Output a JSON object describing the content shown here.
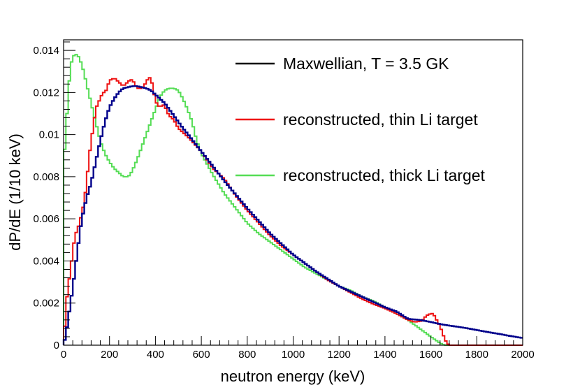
{
  "chart_data": {
    "type": "line",
    "title": "",
    "xlabel": "neutron energy (keV)",
    "ylabel": "dP/dE (1/10 keV)",
    "xlim": [
      0,
      2000
    ],
    "ylim": [
      0,
      0.0145
    ],
    "x_ticks": [
      0,
      200,
      400,
      600,
      800,
      1000,
      1200,
      1400,
      1600,
      1800,
      2000
    ],
    "x_tick_labels": [
      "0",
      "200",
      "400",
      "600",
      "800",
      "1000",
      "1200",
      "1400",
      "1600",
      "1800",
      "2000"
    ],
    "y_ticks": [
      0,
      0.002,
      0.004,
      0.006,
      0.008,
      0.01,
      0.012,
      0.014
    ],
    "y_tick_labels": [
      "0",
      "0.002",
      "0.004",
      "0.006",
      "0.008",
      "0.01",
      "0.012",
      "0.014"
    ],
    "grid": false,
    "legend_position": "top-right",
    "histogram_bin_width": 10,
    "series": [
      {
        "name": "Maxwellian, T = 3.5 GK",
        "color": "#00008b",
        "legend_color": "#000000",
        "points": [
          [
            0,
            0.0
          ],
          [
            10,
            0.0005
          ],
          [
            20,
            0.0012
          ],
          [
            30,
            0.002
          ],
          [
            40,
            0.0027
          ],
          [
            50,
            0.0036
          ],
          [
            60,
            0.0044
          ],
          [
            70,
            0.0053
          ],
          [
            80,
            0.006
          ],
          [
            90,
            0.0065
          ],
          [
            100,
            0.007
          ],
          [
            120,
            0.0077
          ],
          [
            140,
            0.0087
          ],
          [
            160,
            0.0097
          ],
          [
            180,
            0.0106
          ],
          [
            200,
            0.0113
          ],
          [
            220,
            0.0117
          ],
          [
            240,
            0.012
          ],
          [
            260,
            0.0122
          ],
          [
            280,
            0.01225
          ],
          [
            300,
            0.0123
          ],
          [
            320,
            0.0123
          ],
          [
            340,
            0.01225
          ],
          [
            360,
            0.0122
          ],
          [
            380,
            0.0121
          ],
          [
            400,
            0.0119
          ],
          [
            420,
            0.0117
          ],
          [
            440,
            0.0115
          ],
          [
            460,
            0.0112
          ],
          [
            480,
            0.0109
          ],
          [
            500,
            0.0106
          ],
          [
            520,
            0.0103
          ],
          [
            550,
            0.0099
          ],
          [
            600,
            0.0092
          ],
          [
            650,
            0.0085
          ],
          [
            700,
            0.0078
          ],
          [
            750,
            0.00715
          ],
          [
            800,
            0.0065
          ],
          [
            850,
            0.0059
          ],
          [
            900,
            0.0053
          ],
          [
            950,
            0.0048
          ],
          [
            1000,
            0.0043
          ],
          [
            1050,
            0.0039
          ],
          [
            1100,
            0.0035
          ],
          [
            1150,
            0.00315
          ],
          [
            1200,
            0.0028
          ],
          [
            1250,
            0.00255
          ],
          [
            1300,
            0.0023
          ],
          [
            1350,
            0.00205
          ],
          [
            1400,
            0.0018
          ],
          [
            1450,
            0.0016
          ],
          [
            1500,
            0.00125
          ],
          [
            1550,
            0.0012
          ],
          [
            1600,
            0.0011
          ],
          [
            1650,
            0.00098
          ],
          [
            1700,
            0.0009
          ],
          [
            1750,
            0.00082
          ],
          [
            1800,
            0.00072
          ],
          [
            1850,
            0.00062
          ],
          [
            1900,
            0.00053
          ],
          [
            1950,
            0.00043
          ],
          [
            2000,
            0.00034
          ]
        ]
      },
      {
        "name": "reconstructed, thin Li target",
        "color": "#ee1111",
        "legend_color": "#ee1111",
        "points": [
          [
            0,
            0.0
          ],
          [
            10,
            0.0018
          ],
          [
            20,
            0.0028
          ],
          [
            30,
            0.0035
          ],
          [
            40,
            0.0045
          ],
          [
            50,
            0.0052
          ],
          [
            60,
            0.0055
          ],
          [
            70,
            0.0058
          ],
          [
            80,
            0.0063
          ],
          [
            90,
            0.0068
          ],
          [
            100,
            0.0077
          ],
          [
            110,
            0.0088
          ],
          [
            120,
            0.0097
          ],
          [
            130,
            0.0104
          ],
          [
            140,
            0.0112
          ],
          [
            150,
            0.0115
          ],
          [
            160,
            0.0117
          ],
          [
            170,
            0.012
          ],
          [
            180,
            0.012
          ],
          [
            190,
            0.0122
          ],
          [
            200,
            0.0126
          ],
          [
            210,
            0.0126
          ],
          [
            220,
            0.0127
          ],
          [
            230,
            0.0126
          ],
          [
            240,
            0.0125
          ],
          [
            250,
            0.0124
          ],
          [
            260,
            0.0123
          ],
          [
            270,
            0.0124
          ],
          [
            280,
            0.0125
          ],
          [
            290,
            0.0126
          ],
          [
            300,
            0.0126
          ],
          [
            310,
            0.0124
          ],
          [
            320,
            0.0122
          ],
          [
            330,
            0.0122
          ],
          [
            340,
            0.0122
          ],
          [
            350,
            0.0123
          ],
          [
            360,
            0.0125
          ],
          [
            370,
            0.0127
          ],
          [
            380,
            0.0127
          ],
          [
            390,
            0.0122
          ],
          [
            400,
            0.0116
          ],
          [
            410,
            0.0114
          ],
          [
            420,
            0.0113
          ],
          [
            430,
            0.0114
          ],
          [
            440,
            0.0114
          ],
          [
            450,
            0.0111
          ],
          [
            460,
            0.0109
          ],
          [
            470,
            0.0108
          ],
          [
            480,
            0.0107
          ],
          [
            490,
            0.0105
          ],
          [
            500,
            0.0103
          ],
          [
            520,
            0.0101
          ],
          [
            550,
            0.0098
          ],
          [
            600,
            0.0092
          ],
          [
            650,
            0.0084
          ],
          [
            700,
            0.0079
          ],
          [
            750,
            0.0071
          ],
          [
            800,
            0.0064
          ],
          [
            850,
            0.0058
          ],
          [
            900,
            0.0052
          ],
          [
            950,
            0.0047
          ],
          [
            1000,
            0.0043
          ],
          [
            1050,
            0.0039
          ],
          [
            1100,
            0.0035
          ],
          [
            1150,
            0.0031
          ],
          [
            1200,
            0.0028
          ],
          [
            1250,
            0.0025
          ],
          [
            1300,
            0.0022
          ],
          [
            1350,
            0.00195
          ],
          [
            1400,
            0.00175
          ],
          [
            1450,
            0.0015
          ],
          [
            1500,
            0.0012
          ],
          [
            1530,
            0.0011
          ],
          [
            1560,
            0.00115
          ],
          [
            1580,
            0.0014
          ],
          [
            1600,
            0.0015
          ],
          [
            1610,
            0.0015
          ],
          [
            1620,
            0.0013
          ],
          [
            1640,
            0.0009
          ],
          [
            1650,
            0.0006
          ],
          [
            1660,
            0.0003
          ],
          [
            1670,
            0.0001
          ],
          [
            1680,
            0.0
          ],
          [
            2000,
            0.0
          ]
        ]
      },
      {
        "name": "reconstructed, thick Li target",
        "color": "#55dd55",
        "legend_color": "#55dd55",
        "points": [
          [
            0,
            0.0085
          ],
          [
            10,
            0.0101
          ],
          [
            20,
            0.0119
          ],
          [
            30,
            0.0132
          ],
          [
            40,
            0.0137
          ],
          [
            50,
            0.0138
          ],
          [
            60,
            0.0138
          ],
          [
            70,
            0.0136
          ],
          [
            80,
            0.0133
          ],
          [
            90,
            0.0129
          ],
          [
            100,
            0.0124
          ],
          [
            120,
            0.0115
          ],
          [
            140,
            0.0106
          ],
          [
            160,
            0.0097
          ],
          [
            180,
            0.0091
          ],
          [
            200,
            0.0087
          ],
          [
            220,
            0.0084
          ],
          [
            240,
            0.0082
          ],
          [
            260,
            0.008
          ],
          [
            270,
            0.008
          ],
          [
            280,
            0.008
          ],
          [
            290,
            0.0081
          ],
          [
            300,
            0.0083
          ],
          [
            320,
            0.0088
          ],
          [
            340,
            0.0094
          ],
          [
            360,
            0.01
          ],
          [
            380,
            0.0106
          ],
          [
            400,
            0.0112
          ],
          [
            420,
            0.0118
          ],
          [
            440,
            0.0121
          ],
          [
            460,
            0.0122
          ],
          [
            480,
            0.0122
          ],
          [
            500,
            0.0121
          ],
          [
            520,
            0.0117
          ],
          [
            540,
            0.0112
          ],
          [
            560,
            0.0106
          ],
          [
            580,
            0.0097
          ],
          [
            600,
            0.0091
          ],
          [
            650,
            0.0081
          ],
          [
            700,
            0.0072
          ],
          [
            750,
            0.0065
          ],
          [
            800,
            0.0058
          ],
          [
            850,
            0.0053
          ],
          [
            900,
            0.0049
          ],
          [
            950,
            0.0045
          ],
          [
            1000,
            0.0041
          ],
          [
            1050,
            0.0037
          ],
          [
            1100,
            0.0034
          ],
          [
            1150,
            0.0031
          ],
          [
            1200,
            0.0028
          ],
          [
            1250,
            0.0026
          ],
          [
            1300,
            0.0023
          ],
          [
            1350,
            0.0021
          ],
          [
            1400,
            0.0018
          ],
          [
            1450,
            0.0015
          ],
          [
            1500,
            0.0012
          ],
          [
            1550,
            0.0008
          ],
          [
            1600,
            0.0004
          ],
          [
            1620,
            0.00025
          ],
          [
            1640,
            0.0001
          ],
          [
            1660,
            0.0
          ],
          [
            2000,
            0.0
          ]
        ]
      }
    ]
  }
}
